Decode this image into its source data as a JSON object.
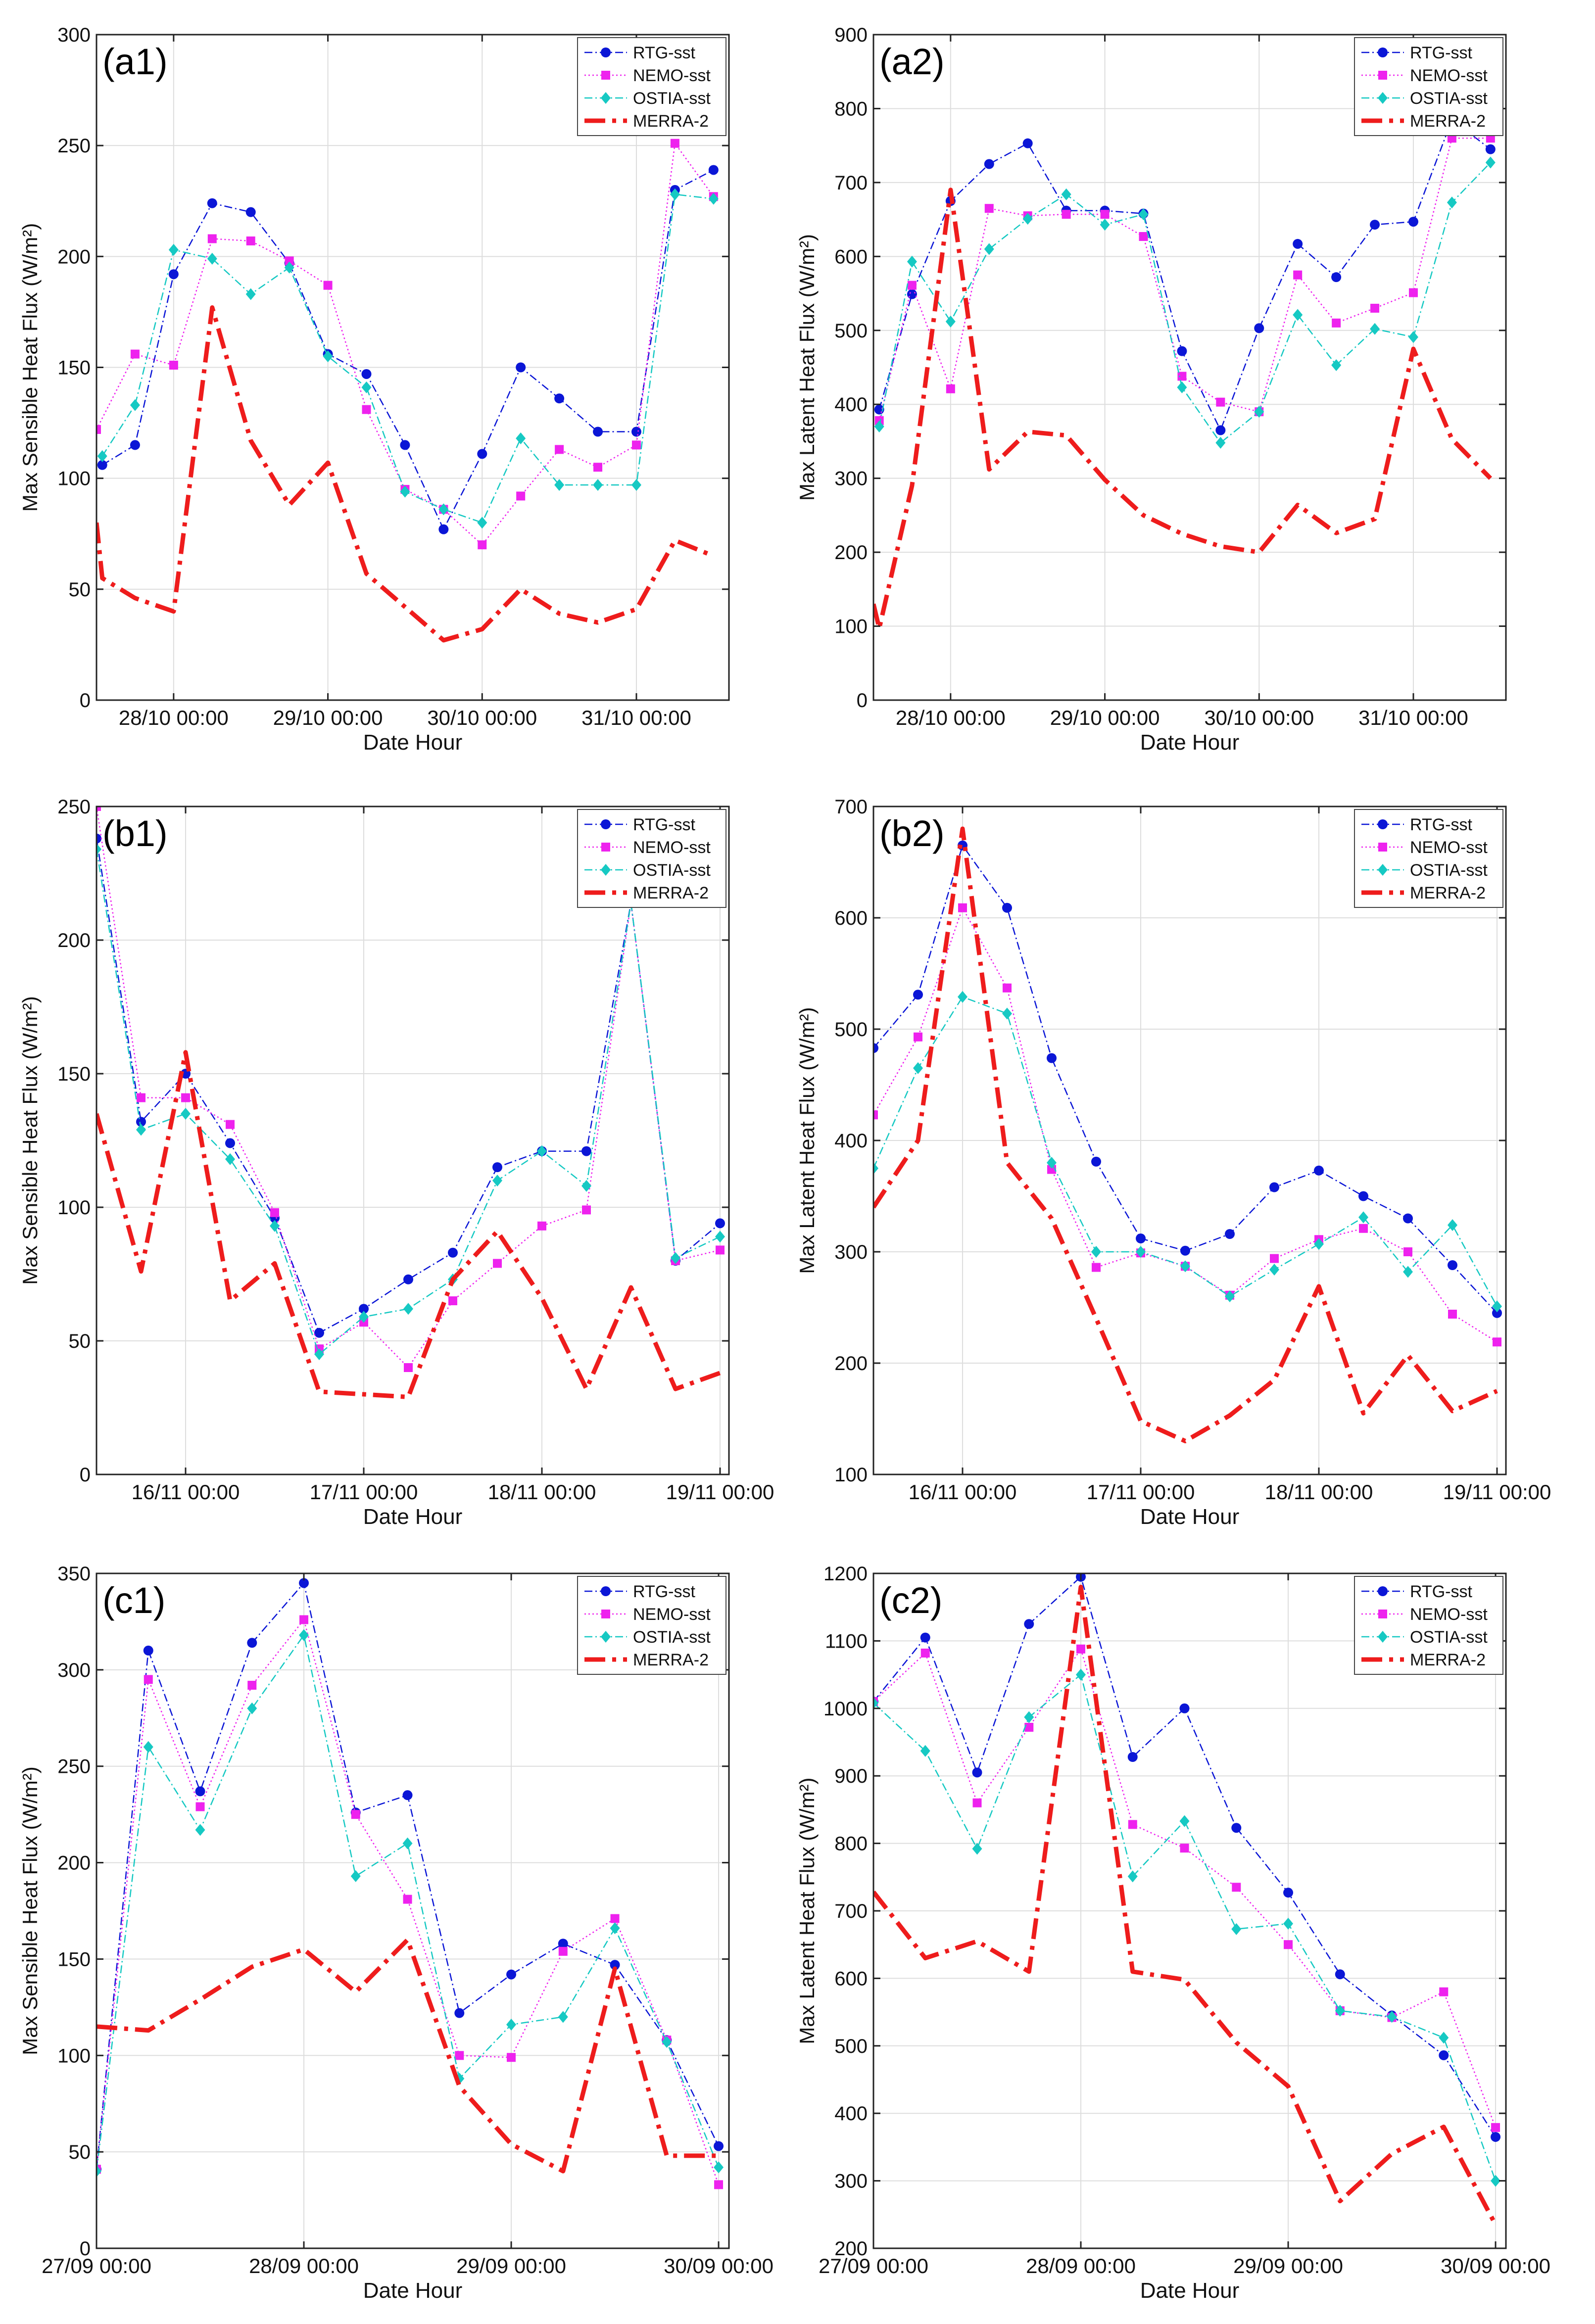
{
  "colors": {
    "rtg": "#0b16d6",
    "nemo": "#ee22ee",
    "ostia": "#16c9c3",
    "merra": "#ee1c1c",
    "grid": "#dddddd",
    "axis": "#222222"
  },
  "chart_data": [
    {
      "id": "a1",
      "panel_label": "(a1)",
      "type": "line",
      "xlabel": "Date Hour",
      "ylabel": "Max Sensible Heat Flux (W/m²)",
      "xlim": [
        0,
        16.4
      ],
      "ylim": [
        0,
        300
      ],
      "yticks": [
        0,
        50,
        100,
        150,
        200,
        250,
        300
      ],
      "xticks": [
        {
          "x": 2,
          "label": "28/10 00:00"
        },
        {
          "x": 6,
          "label": "29/10 00:00"
        },
        {
          "x": 10,
          "label": "30/10 00:00"
        },
        {
          "x": 14,
          "label": "31/10 00:00"
        }
      ],
      "series": [
        {
          "name": "RTG-sst",
          "style": "rtg",
          "x": [
            0.15,
            1,
            2,
            3,
            4,
            5,
            6,
            7,
            8,
            9,
            10,
            11,
            12,
            13,
            14,
            15,
            16
          ],
          "values": [
            106,
            115,
            192,
            224,
            220,
            197,
            156,
            147,
            115,
            77,
            111,
            150,
            136,
            121,
            121,
            230,
            239
          ]
        },
        {
          "name": "NEMO-sst",
          "style": "nemo",
          "x": [
            0,
            1,
            2,
            3,
            4,
            5,
            6,
            7,
            8,
            9,
            10,
            11,
            12,
            13,
            14,
            15,
            16
          ],
          "values": [
            122,
            156,
            151,
            208,
            207,
            198,
            187,
            131,
            95,
            86,
            70,
            92,
            113,
            105,
            115,
            251,
            227
          ]
        },
        {
          "name": "OSTIA-sst",
          "style": "ostia",
          "x": [
            0.15,
            1,
            2,
            3,
            4,
            5,
            6,
            7,
            8,
            9,
            10,
            11,
            12,
            13,
            14,
            15,
            16
          ],
          "values": [
            110,
            133,
            203,
            199,
            183,
            195,
            155,
            141,
            94,
            86,
            80,
            118,
            97,
            97,
            97,
            228,
            226
          ]
        },
        {
          "name": "MERRA-2",
          "style": "merra",
          "x": [
            0,
            0.15,
            1,
            2,
            3,
            4,
            5,
            6,
            7,
            8,
            9,
            10,
            11,
            12,
            13,
            14,
            15,
            16
          ],
          "values": [
            80,
            55,
            46,
            40,
            177,
            117,
            88,
            107,
            57,
            42,
            27,
            32,
            50,
            39,
            35,
            41,
            72,
            65
          ]
        }
      ]
    },
    {
      "id": "a2",
      "panel_label": "(a2)",
      "type": "line",
      "xlabel": "Date Hour",
      "ylabel": "Max Latent Heat Flux (W/m²)",
      "xlim": [
        0,
        16.4
      ],
      "ylim": [
        0,
        900
      ],
      "yticks": [
        0,
        100,
        200,
        300,
        400,
        500,
        600,
        700,
        800,
        900
      ],
      "xticks": [
        {
          "x": 2,
          "label": "28/10 00:00"
        },
        {
          "x": 6,
          "label": "29/10 00:00"
        },
        {
          "x": 10,
          "label": "30/10 00:00"
        },
        {
          "x": 14,
          "label": "31/10 00:00"
        }
      ],
      "series": [
        {
          "name": "RTG-sst",
          "style": "rtg",
          "x": [
            0.15,
            1,
            2,
            3,
            4,
            5,
            6,
            7,
            8,
            9,
            10,
            11,
            12,
            13,
            14,
            15,
            16
          ],
          "values": [
            393,
            549,
            675,
            725,
            753,
            662,
            662,
            658,
            472,
            365,
            503,
            617,
            572,
            643,
            647,
            785,
            745
          ]
        },
        {
          "name": "NEMO-sst",
          "style": "nemo",
          "x": [
            0.15,
            1,
            2,
            3,
            4,
            5,
            6,
            7,
            8,
            9,
            10,
            11,
            12,
            13,
            14,
            15,
            16
          ],
          "values": [
            378,
            561,
            421,
            665,
            655,
            657,
            657,
            627,
            438,
            403,
            390,
            575,
            510,
            530,
            551,
            760,
            760
          ]
        },
        {
          "name": "OSTIA-sst",
          "style": "ostia",
          "x": [
            0.15,
            1,
            2,
            3,
            4,
            5,
            6,
            7,
            8,
            9,
            10,
            11,
            12,
            13,
            14,
            15,
            16
          ],
          "values": [
            370,
            593,
            512,
            610,
            651,
            684,
            643,
            657,
            423,
            348,
            390,
            521,
            453,
            502,
            491,
            673,
            727
          ]
        },
        {
          "name": "MERRA-2",
          "style": "merra",
          "x": [
            0,
            0.15,
            1,
            2,
            3,
            4,
            5,
            6,
            7,
            8,
            9,
            10,
            11,
            12,
            13,
            14,
            15,
            16
          ],
          "values": [
            130,
            97,
            290,
            690,
            312,
            363,
            358,
            298,
            250,
            225,
            208,
            200,
            264,
            226,
            245,
            475,
            353,
            300
          ]
        }
      ]
    },
    {
      "id": "b1",
      "panel_label": "(b1)",
      "type": "line",
      "xlabel": "Date Hour",
      "ylabel": "Max Sensible Heat Flux (W/m²)",
      "xlim": [
        0,
        14.2
      ],
      "ylim": [
        0,
        250
      ],
      "yticks": [
        0,
        50,
        100,
        150,
        200,
        250
      ],
      "xticks": [
        {
          "x": 2,
          "label": "16/11 00:00"
        },
        {
          "x": 6,
          "label": "17/11 00:00"
        },
        {
          "x": 10,
          "label": "18/11 00:00"
        },
        {
          "x": 14,
          "label": "19/11 00:00"
        }
      ],
      "series": [
        {
          "name": "RTG-sst",
          "style": "rtg",
          "x": [
            0,
            1,
            2,
            3,
            4,
            5,
            6,
            7,
            8,
            9,
            10,
            11,
            12,
            13,
            14
          ],
          "values": [
            238,
            132,
            150,
            124,
            96,
            53,
            62,
            73,
            83,
            115,
            121,
            121,
            214,
            80,
            94
          ]
        },
        {
          "name": "NEMO-sst",
          "style": "nemo",
          "x": [
            0,
            1,
            2,
            3,
            4,
            5,
            6,
            7,
            8,
            9,
            10,
            11,
            12,
            13,
            14
          ],
          "values": [
            250,
            141,
            141,
            131,
            98,
            47,
            57,
            40,
            65,
            79,
            93,
            99,
            214,
            80,
            84
          ]
        },
        {
          "name": "OSTIA-sst",
          "style": "ostia",
          "x": [
            0,
            1,
            2,
            3,
            4,
            5,
            6,
            7,
            8,
            9,
            10,
            11,
            12,
            13,
            14
          ],
          "values": [
            234,
            129,
            135,
            118,
            93,
            45,
            59,
            62,
            73,
            110,
            121,
            108,
            214,
            81,
            89
          ]
        },
        {
          "name": "MERRA-2",
          "style": "merra",
          "x": [
            0,
            1,
            2,
            3,
            4,
            5,
            6,
            7,
            8,
            9,
            10,
            11,
            12,
            13,
            14
          ],
          "values": [
            135,
            76,
            158,
            65,
            79,
            31,
            30,
            29,
            73,
            91,
            66,
            32,
            70,
            32,
            38
          ]
        }
      ]
    },
    {
      "id": "b2",
      "panel_label": "(b2)",
      "type": "line",
      "xlabel": "Date Hour",
      "ylabel": "Max Latent Heat Flux (W/m²)",
      "xlim": [
        0,
        14.2
      ],
      "ylim": [
        100,
        700
      ],
      "yticks": [
        100,
        200,
        300,
        400,
        500,
        600,
        700
      ],
      "xticks": [
        {
          "x": 2,
          "label": "16/11 00:00"
        },
        {
          "x": 6,
          "label": "17/11 00:00"
        },
        {
          "x": 10,
          "label": "18/11 00:00"
        },
        {
          "x": 14,
          "label": "19/11 00:00"
        }
      ],
      "series": [
        {
          "name": "RTG-sst",
          "style": "rtg",
          "x": [
            0,
            1,
            2,
            3,
            4,
            5,
            6,
            7,
            8,
            9,
            10,
            11,
            12,
            13,
            14
          ],
          "values": [
            483,
            531,
            665,
            609,
            474,
            381,
            312,
            301,
            316,
            358,
            373,
            350,
            330,
            288,
            245
          ]
        },
        {
          "name": "NEMO-sst",
          "style": "nemo",
          "x": [
            0,
            1,
            2,
            3,
            4,
            5,
            6,
            7,
            8,
            9,
            10,
            11,
            12,
            13,
            14
          ],
          "values": [
            423,
            493,
            609,
            537,
            374,
            286,
            299,
            287,
            261,
            294,
            311,
            321,
            300,
            244,
            219
          ]
        },
        {
          "name": "OSTIA-sst",
          "style": "ostia",
          "x": [
            0,
            1,
            2,
            3,
            4,
            5,
            6,
            7,
            8,
            9,
            10,
            11,
            12,
            13,
            14
          ],
          "values": [
            375,
            465,
            529,
            514,
            380,
            300,
            300,
            287,
            260,
            284,
            307,
            331,
            282,
            324,
            251
          ]
        },
        {
          "name": "MERRA-2",
          "style": "merra",
          "x": [
            0,
            1,
            2,
            3,
            4,
            5,
            6,
            7,
            8,
            9,
            10,
            11,
            12,
            13,
            14
          ],
          "values": [
            340,
            400,
            680,
            380,
            330,
            240,
            148,
            130,
            153,
            185,
            269,
            155,
            207,
            157,
            175
          ]
        }
      ]
    },
    {
      "id": "c1",
      "panel_label": "(c1)",
      "type": "line",
      "xlabel": "Date Hour",
      "ylabel": "Max Sensible Heat Flux (W/m²)",
      "xlim": [
        0,
        12.2
      ],
      "ylim": [
        0,
        350
      ],
      "yticks": [
        0,
        50,
        100,
        150,
        200,
        250,
        300,
        350
      ],
      "xticks": [
        {
          "x": 0,
          "label": "27/09 00:00"
        },
        {
          "x": 4,
          "label": "28/09 00:00"
        },
        {
          "x": 8,
          "label": "29/09 00:00"
        },
        {
          "x": 12,
          "label": "30/09 00:00"
        }
      ],
      "series": [
        {
          "name": "RTG-sst",
          "style": "rtg",
          "x": [
            0,
            1,
            2,
            3,
            4,
            5,
            6,
            7,
            8,
            9,
            10,
            11,
            12
          ],
          "values": [
            41,
            310,
            237,
            314,
            345,
            226,
            235,
            122,
            142,
            158,
            147,
            108,
            53
          ]
        },
        {
          "name": "NEMO-sst",
          "style": "nemo",
          "x": [
            0,
            1,
            2,
            3,
            4,
            5,
            6,
            7,
            8,
            9,
            10,
            11,
            12
          ],
          "values": [
            41,
            295,
            229,
            292,
            326,
            225,
            181,
            100,
            99,
            154,
            171,
            108,
            33
          ]
        },
        {
          "name": "OSTIA-sst",
          "style": "ostia",
          "x": [
            0,
            1,
            2,
            3,
            4,
            5,
            6,
            7,
            8,
            9,
            10,
            11,
            12
          ],
          "values": [
            40,
            260,
            217,
            280,
            318,
            193,
            210,
            88,
            116,
            120,
            166,
            107,
            42
          ]
        },
        {
          "name": "MERRA-2",
          "style": "merra",
          "x": [
            0,
            1,
            2,
            3,
            4,
            5,
            6,
            7,
            8,
            9,
            10,
            11,
            12
          ],
          "values": [
            115,
            113,
            129,
            146,
            155,
            133,
            160,
            84,
            54,
            40,
            145,
            48,
            48
          ]
        }
      ]
    },
    {
      "id": "c2",
      "panel_label": "(c2)",
      "type": "line",
      "xlabel": "Date Hour",
      "ylabel": "Max Latent Heat Flux (W/m²)",
      "xlim": [
        0,
        12.2
      ],
      "ylim": [
        200,
        1200
      ],
      "yticks": [
        200,
        300,
        400,
        500,
        600,
        700,
        800,
        900,
        1000,
        1100,
        1200
      ],
      "xticks": [
        {
          "x": 0,
          "label": "27/09 00:00"
        },
        {
          "x": 4,
          "label": "28/09 00:00"
        },
        {
          "x": 8,
          "label": "29/09 00:00"
        },
        {
          "x": 12,
          "label": "30/09 00:00"
        }
      ],
      "series": [
        {
          "name": "RTG-sst",
          "style": "rtg",
          "x": [
            0,
            1,
            2,
            3,
            4,
            5,
            6,
            7,
            8,
            9,
            10,
            11,
            12
          ],
          "values": [
            1010,
            1105,
            905,
            1125,
            1195,
            928,
            1000,
            823,
            727,
            606,
            545,
            486,
            365
          ]
        },
        {
          "name": "NEMO-sst",
          "style": "nemo",
          "x": [
            0,
            1,
            2,
            3,
            4,
            5,
            6,
            7,
            8,
            9,
            10,
            11,
            12
          ],
          "values": [
            1010,
            1082,
            860,
            972,
            1088,
            828,
            793,
            735,
            650,
            552,
            542,
            580,
            379
          ]
        },
        {
          "name": "OSTIA-sst",
          "style": "ostia",
          "x": [
            0,
            1,
            2,
            3,
            4,
            5,
            6,
            7,
            8,
            9,
            10,
            11,
            12
          ],
          "values": [
            1008,
            937,
            792,
            987,
            1050,
            751,
            833,
            673,
            681,
            552,
            543,
            512,
            300
          ]
        },
        {
          "name": "MERRA-2",
          "style": "merra",
          "x": [
            0,
            1,
            2,
            3,
            4,
            5,
            6,
            7,
            8,
            9,
            10,
            11,
            12
          ],
          "values": [
            728,
            630,
            655,
            610,
            1180,
            610,
            598,
            505,
            440,
            270,
            340,
            380,
            235
          ]
        }
      ]
    }
  ]
}
